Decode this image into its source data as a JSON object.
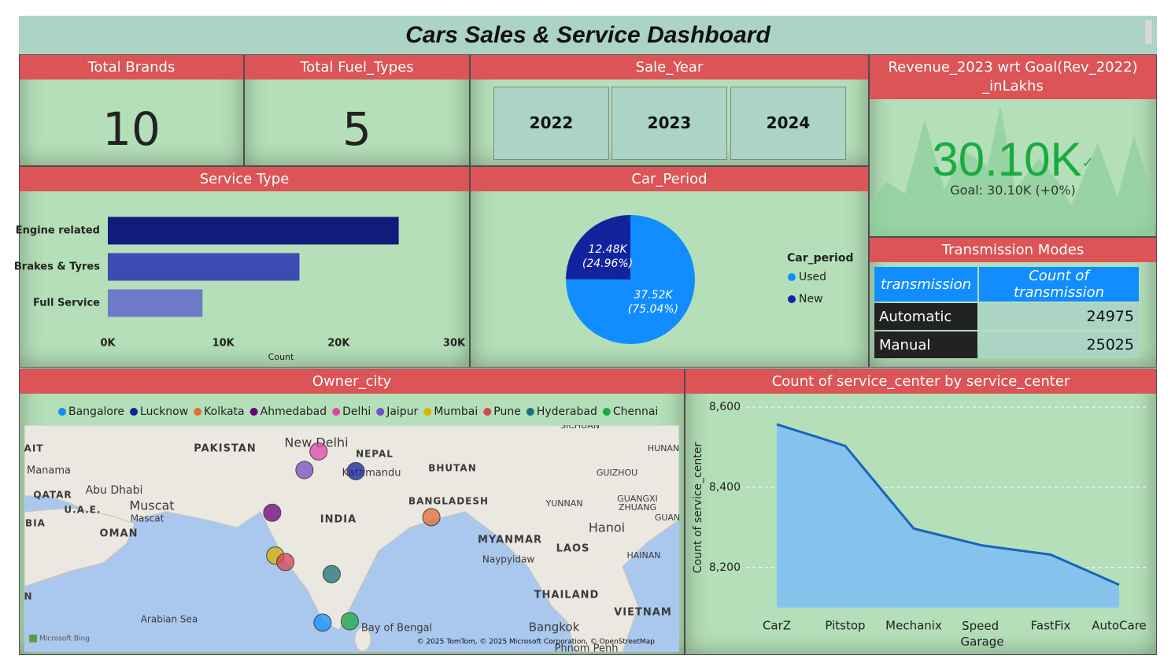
{
  "title": "Cars Sales & Service Dashboard",
  "cards": [
    {
      "label": "Total Brands",
      "value": 10
    },
    {
      "label": "Total Fuel_Types",
      "value": 5
    }
  ],
  "slicer": {
    "title": "Sale_Year",
    "options": [
      "2022",
      "2023",
      "2024"
    ]
  },
  "kpi": {
    "title_lines": [
      "Revenue_2023 wrt Goal(Rev_2022)",
      "_inLakhs"
    ],
    "value": "30.10K",
    "goal": "Goal: 30.10K (+0%)"
  },
  "transmission_table": {
    "title": "Transmission Modes",
    "headers": [
      "transmission",
      "Count of transmission"
    ],
    "rows": [
      [
        "Automatic",
        24975
      ],
      [
        "Manual",
        25025
      ]
    ]
  },
  "chart_data": [
    {
      "type": "bar",
      "orientation": "horizontal",
      "title": "Service Type",
      "categories": [
        "Engine related",
        "Brakes & Tyres",
        "Full Service"
      ],
      "values": [
        25200,
        16600,
        8200
      ],
      "colors": [
        "#0f1c7c",
        "#3b4bb3",
        "#6e79c7"
      ],
      "xlim": [
        0,
        30000
      ],
      "xticks": [
        {
          "value": 0,
          "label": "0K"
        },
        {
          "value": 10000,
          "label": "10K"
        },
        {
          "value": 20000,
          "label": "20K"
        },
        {
          "value": 30000,
          "label": "30K"
        }
      ],
      "x_label": "Count"
    },
    {
      "type": "pie",
      "title": "Car_Period",
      "legend_title": "Car_period",
      "categories": [
        "Used",
        "New"
      ],
      "values": [
        37520,
        12480
      ],
      "value_labels": [
        "37.52K",
        "12.48K"
      ],
      "percent_labels": [
        "(75.04%)",
        "(24.96%)"
      ],
      "colors": [
        "#118dff",
        "#12239e"
      ]
    },
    {
      "type": "map",
      "title": "Owner_city",
      "xlim": [
        48,
        113
      ],
      "ylim": [
        10.3,
        31
      ],
      "series": [
        {
          "name": "Bangalore",
          "color": "#118dff",
          "lon": 77.6,
          "lat": 12.97
        },
        {
          "name": "Lucknow",
          "color": "#12239e",
          "lon": 80.9,
          "lat": 26.8
        },
        {
          "name": "Kolkata",
          "color": "#e66c37",
          "lon": 88.4,
          "lat": 22.6
        },
        {
          "name": "Ahmedabad",
          "color": "#6b007b",
          "lon": 72.6,
          "lat": 23.0
        },
        {
          "name": "Delhi",
          "color": "#e044a7",
          "lon": 77.2,
          "lat": 28.6
        },
        {
          "name": "Jaipur",
          "color": "#744ec2",
          "lon": 75.8,
          "lat": 26.9
        },
        {
          "name": "Mumbai",
          "color": "#d9b300",
          "lon": 72.9,
          "lat": 19.1
        },
        {
          "name": "Pune",
          "color": "#d64550",
          "lon": 73.9,
          "lat": 18.5
        },
        {
          "name": "Hyderabad",
          "color": "#197278",
          "lon": 78.5,
          "lat": 17.4
        },
        {
          "name": "Chennai",
          "color": "#1aab40",
          "lon": 80.3,
          "lat": 13.1
        }
      ],
      "place_labels": [
        "AIT",
        "Manama",
        "QATAR",
        "Abu Dhabi",
        "U.A.E.",
        "Muscat",
        "Mascat",
        "BIA",
        "OMAN",
        "PAKISTAN",
        "New Delhi",
        "NEPAL",
        "Kathmandu",
        "BHUTAN",
        "SICHUAN",
        "HUNAN",
        "GUIZHOU",
        "BANGLADESH",
        "YUNNAN",
        "GUANGXI",
        "ZHUANG",
        "GUAN",
        "INDIA",
        "Hanoi",
        "MYANMAR",
        "LAOS",
        "Naypyidaw",
        "HAINAN",
        "THAILAND",
        "N",
        "VIETNAM",
        "Arabian Sea",
        "Bay of Bengal",
        "Bangkok",
        "Phnom Penh"
      ],
      "attribution": "© 2025 TomTom, © 2025 Microsoft Corporation, © OpenStreetMap",
      "provider": "Microsoft Bing"
    },
    {
      "type": "area",
      "title": "Count of service_center by service_center",
      "y_label": "Count of service_center",
      "categories": [
        "CarZ",
        "Pitstop",
        "Mechanix",
        "Speed Garage",
        "FastFix",
        "AutoCare"
      ],
      "values": [
        8557,
        8503,
        8297,
        8255,
        8232,
        8157
      ],
      "color": "#1565c0",
      "fill": "#86c3ec",
      "ylim": [
        8100,
        8620
      ],
      "yticks": [
        {
          "value": 8200,
          "label": "8,200"
        },
        {
          "value": 8400,
          "label": "8,400"
        },
        {
          "value": 8600,
          "label": "8,600"
        }
      ],
      "grid": true
    }
  ]
}
